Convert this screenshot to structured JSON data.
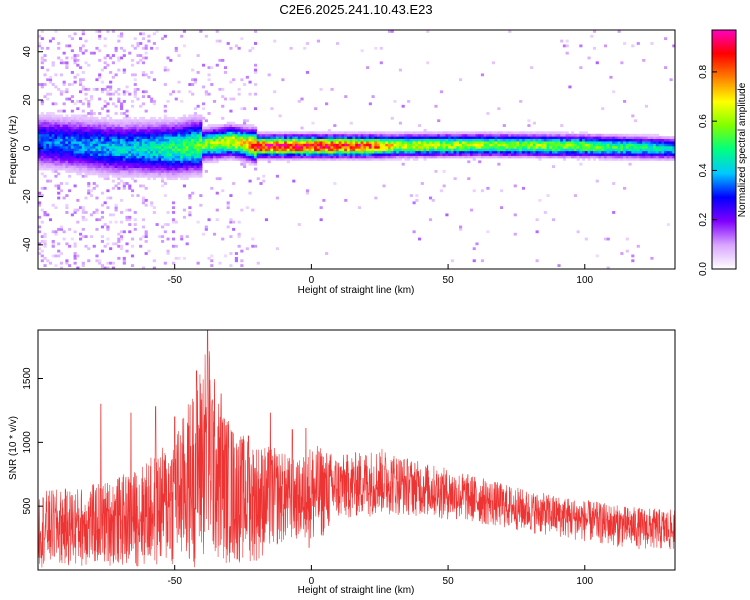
{
  "title": "C2E6.2025.241.10.43.E23",
  "chart_data": [
    {
      "type": "heatmap",
      "xlabel": "Height of straight line (km)",
      "ylabel": "Frequency (Hz)",
      "xlim": [
        -100,
        133
      ],
      "ylim": [
        -50,
        49
      ],
      "xticks": [
        -50,
        0,
        50,
        100
      ],
      "yticks": [
        -40,
        -20,
        0,
        20,
        40
      ],
      "colorbar": {
        "label": "Normalized spectral amplitude",
        "range": [
          0,
          0.97
        ],
        "ticks": [
          "0.0",
          "0.2",
          "0.4",
          "0.6",
          "0.8"
        ],
        "tick_values": [
          0.0,
          0.2,
          0.4,
          0.6,
          0.8
        ],
        "colormap": [
          "#ffffff",
          "#d9a6ff",
          "#8000ff",
          "#0000ff",
          "#00c8ff",
          "#00ff80",
          "#80ff00",
          "#ffff00",
          "#ff8000",
          "#ff0000",
          "#ff00c0"
        ]
      },
      "ridge_frequency": [
        {
          "x": -100,
          "f": 3
        },
        {
          "x": -90,
          "f": 2
        },
        {
          "x": -70,
          "f": 0
        },
        {
          "x": -50,
          "f": 0
        },
        {
          "x": -40,
          "f": 1.5
        },
        {
          "x": -30,
          "f": 3
        },
        {
          "x": -20,
          "f": 1
        },
        {
          "x": 0,
          "f": 1
        },
        {
          "x": 20,
          "f": 1
        },
        {
          "x": 60,
          "f": 1.5
        },
        {
          "x": 100,
          "f": 1
        },
        {
          "x": 133,
          "f": 0
        }
      ],
      "ridge_amplitude": [
        {
          "x": -100,
          "a": 0.35
        },
        {
          "x": -80,
          "a": 0.4
        },
        {
          "x": -60,
          "a": 0.45
        },
        {
          "x": -40,
          "a": 0.6
        },
        {
          "x": -25,
          "a": 0.75
        },
        {
          "x": -20,
          "a": 0.95
        },
        {
          "x": 0,
          "a": 0.95
        },
        {
          "x": 20,
          "a": 0.9
        },
        {
          "x": 30,
          "a": 0.7
        },
        {
          "x": 60,
          "a": 0.65
        },
        {
          "x": 100,
          "a": 0.6
        },
        {
          "x": 133,
          "a": 0.45
        }
      ]
    },
    {
      "type": "line",
      "xlabel": "Height of straight line (km)",
      "ylabel": "SNR (10 * v/v)",
      "xlim": [
        -100,
        133
      ],
      "ylim": [
        0,
        1880
      ],
      "xticks": [
        -50,
        0,
        50,
        100
      ],
      "yticks": [
        500,
        1000,
        1500
      ],
      "series_color": "#ee3333",
      "envelope": [
        {
          "x": -100,
          "lo": 20,
          "hi": 620
        },
        {
          "x": -85,
          "lo": 20,
          "hi": 650
        },
        {
          "x": -75,
          "lo": 30,
          "hi": 700
        },
        {
          "x": -65,
          "lo": 20,
          "hi": 780
        },
        {
          "x": -55,
          "lo": 10,
          "hi": 950
        },
        {
          "x": -48,
          "lo": 20,
          "hi": 1150
        },
        {
          "x": -42,
          "lo": 20,
          "hi": 1500
        },
        {
          "x": -38,
          "lo": 50,
          "hi": 1850
        },
        {
          "x": -34,
          "lo": 40,
          "hi": 1350
        },
        {
          "x": -28,
          "lo": 40,
          "hi": 1100
        },
        {
          "x": -20,
          "lo": 60,
          "hi": 1000
        },
        {
          "x": -12,
          "lo": 180,
          "hi": 950
        },
        {
          "x": -5,
          "lo": 230,
          "hi": 850
        },
        {
          "x": 0,
          "lo": 150,
          "hi": 1000
        },
        {
          "x": 10,
          "lo": 380,
          "hi": 900
        },
        {
          "x": 25,
          "lo": 430,
          "hi": 960
        },
        {
          "x": 40,
          "lo": 420,
          "hi": 850
        },
        {
          "x": 60,
          "lo": 360,
          "hi": 740
        },
        {
          "x": 80,
          "lo": 290,
          "hi": 620
        },
        {
          "x": 100,
          "lo": 220,
          "hi": 550
        },
        {
          "x": 115,
          "lo": 170,
          "hi": 500
        },
        {
          "x": 133,
          "lo": 140,
          "hi": 470
        }
      ],
      "spikes": [
        {
          "x": -77,
          "y": 1300
        },
        {
          "x": -66,
          "y": 1230
        },
        {
          "x": -57,
          "y": 1280
        },
        {
          "x": -50,
          "y": 1200
        },
        {
          "x": -42,
          "y": 1560
        },
        {
          "x": -38,
          "y": 1880
        },
        {
          "x": -33,
          "y": 1380
        },
        {
          "x": -29,
          "y": 1080
        },
        {
          "x": -23,
          "y": 1050
        },
        {
          "x": -15,
          "y": 1230
        },
        {
          "x": -7,
          "y": 1100
        },
        {
          "x": -2,
          "y": 1110
        }
      ]
    }
  ]
}
